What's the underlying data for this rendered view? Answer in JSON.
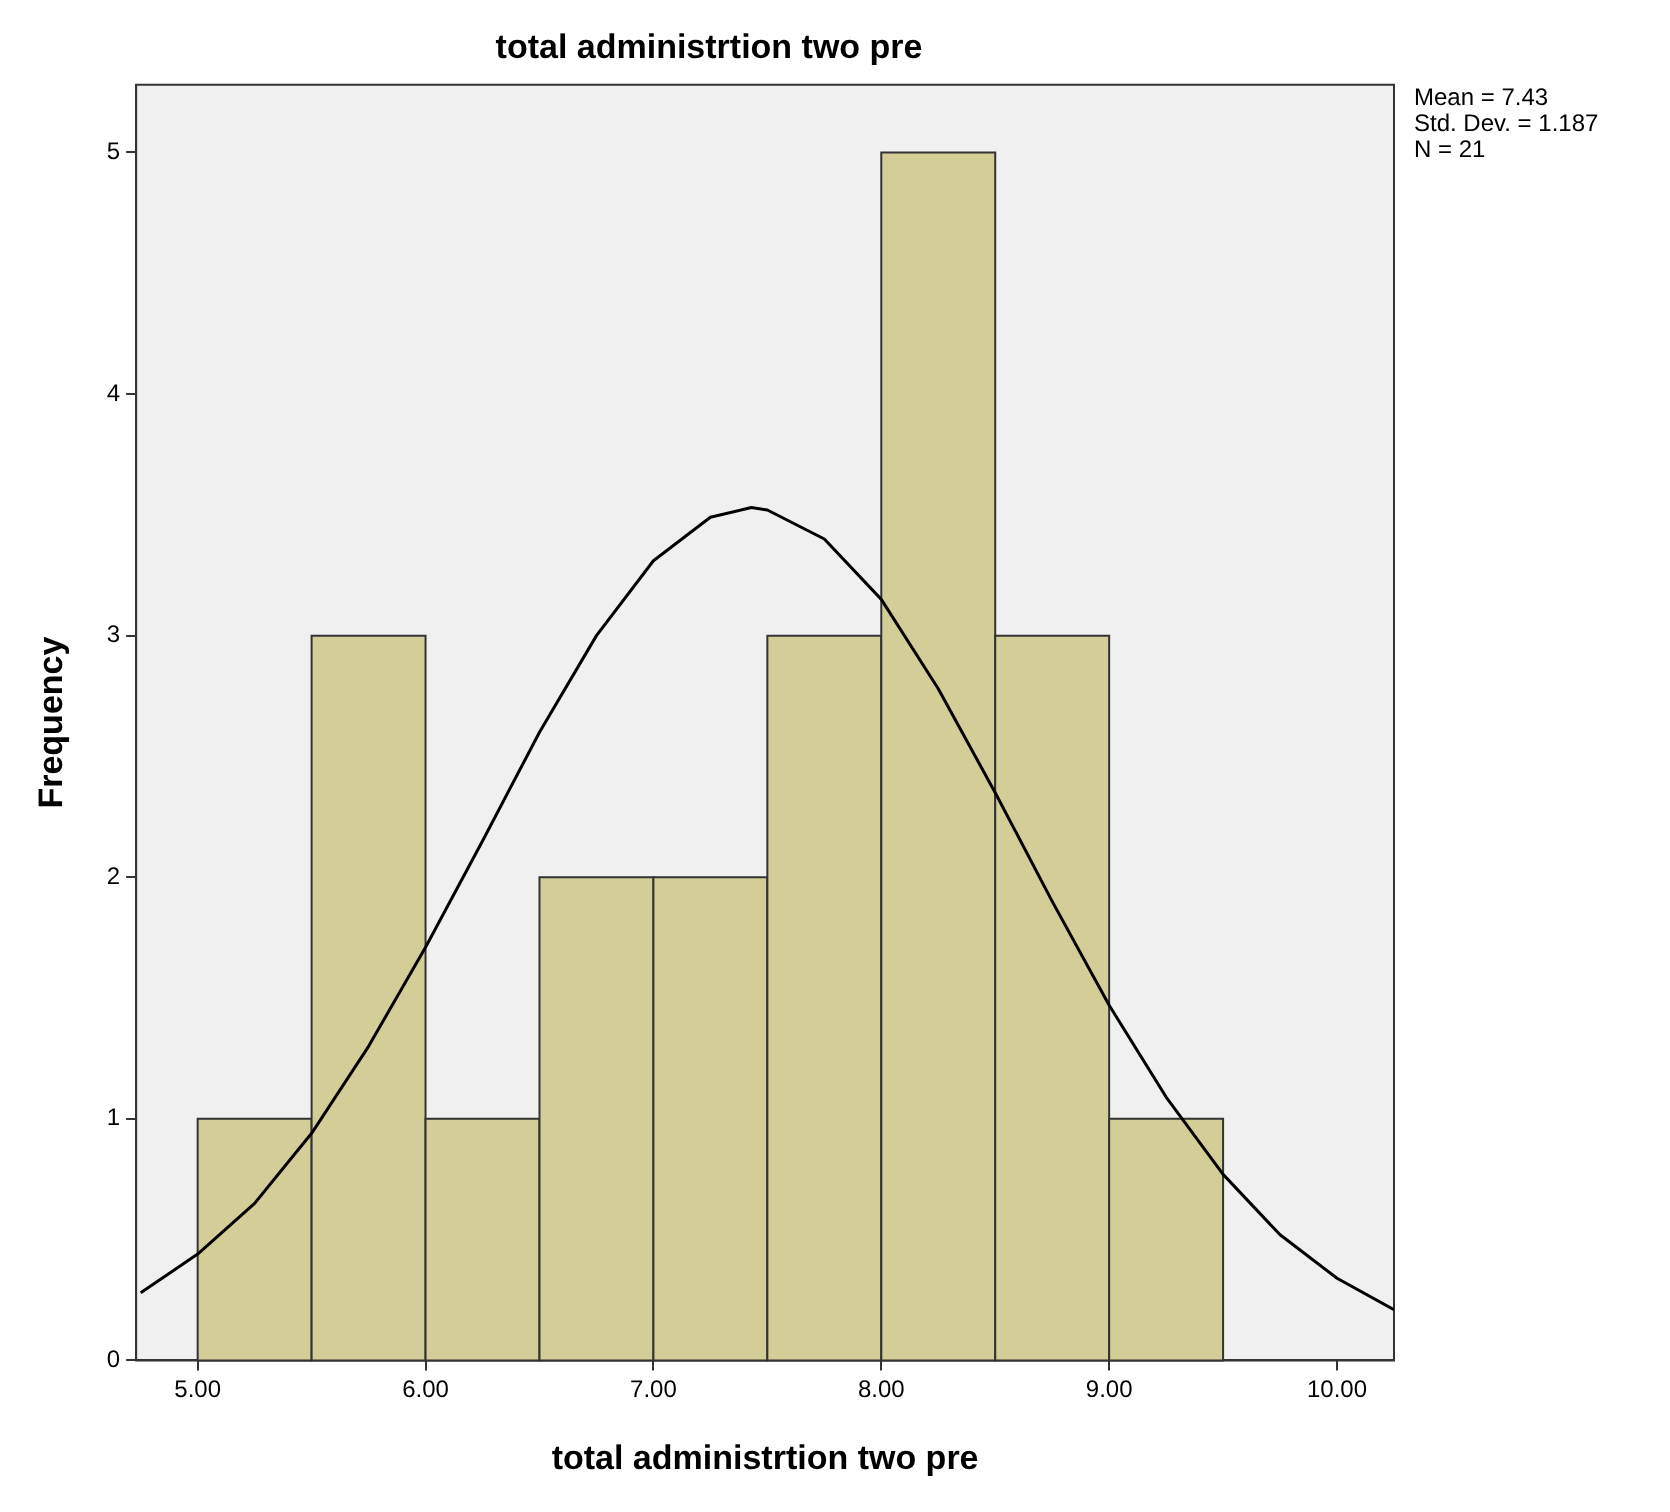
{
  "chart_data": {
    "type": "histogram",
    "title": "total administrtion two pre",
    "xlabel": "total administrtion two pre",
    "ylabel": "Frequency",
    "bins": [
      5.0,
      5.5,
      6.0,
      6.5,
      7.0,
      7.5,
      8.0,
      8.5,
      9.0,
      9.5
    ],
    "values": [
      1,
      3,
      1,
      2,
      2,
      3,
      5,
      3,
      1
    ],
    "color": "#d3ce97",
    "series": [
      {
        "type": "line",
        "color": "#000000",
        "x": [
          4.75,
          5.0,
          5.25,
          5.5,
          5.75,
          6.0,
          6.25,
          6.5,
          6.75,
          7.0,
          7.25,
          7.43,
          7.5,
          7.75,
          8.0,
          8.25,
          8.5,
          8.75,
          9.0,
          9.25,
          9.5,
          9.75,
          10.0,
          10.25
        ],
        "values": [
          0.28,
          0.44,
          0.65,
          0.94,
          1.3,
          1.71,
          2.15,
          2.6,
          3.0,
          3.31,
          3.49,
          3.53,
          3.52,
          3.4,
          3.15,
          2.78,
          2.35,
          1.9,
          1.47,
          1.09,
          0.77,
          0.52,
          0.34,
          0.21
        ]
      }
    ],
    "marker": "none",
    "line_style": "solid",
    "xlim": [
      4.73,
      10.25
    ],
    "xticks": [
      {
        "value": 5,
        "label": "5.00"
      },
      {
        "value": 6,
        "label": "6.00"
      },
      {
        "value": 7,
        "label": "7.00"
      },
      {
        "value": 8,
        "label": "8.00"
      },
      {
        "value": 9,
        "label": "9.00"
      },
      {
        "value": 10,
        "label": "10.00"
      }
    ],
    "ylim": [
      0,
      5.28
    ],
    "yticks": [
      0,
      1,
      2,
      3,
      4,
      5
    ],
    "grid": false,
    "legend": false,
    "annotations": [
      "Mean = 7.43",
      "Std. Dev. = 1.187",
      "N = 21"
    ]
  }
}
